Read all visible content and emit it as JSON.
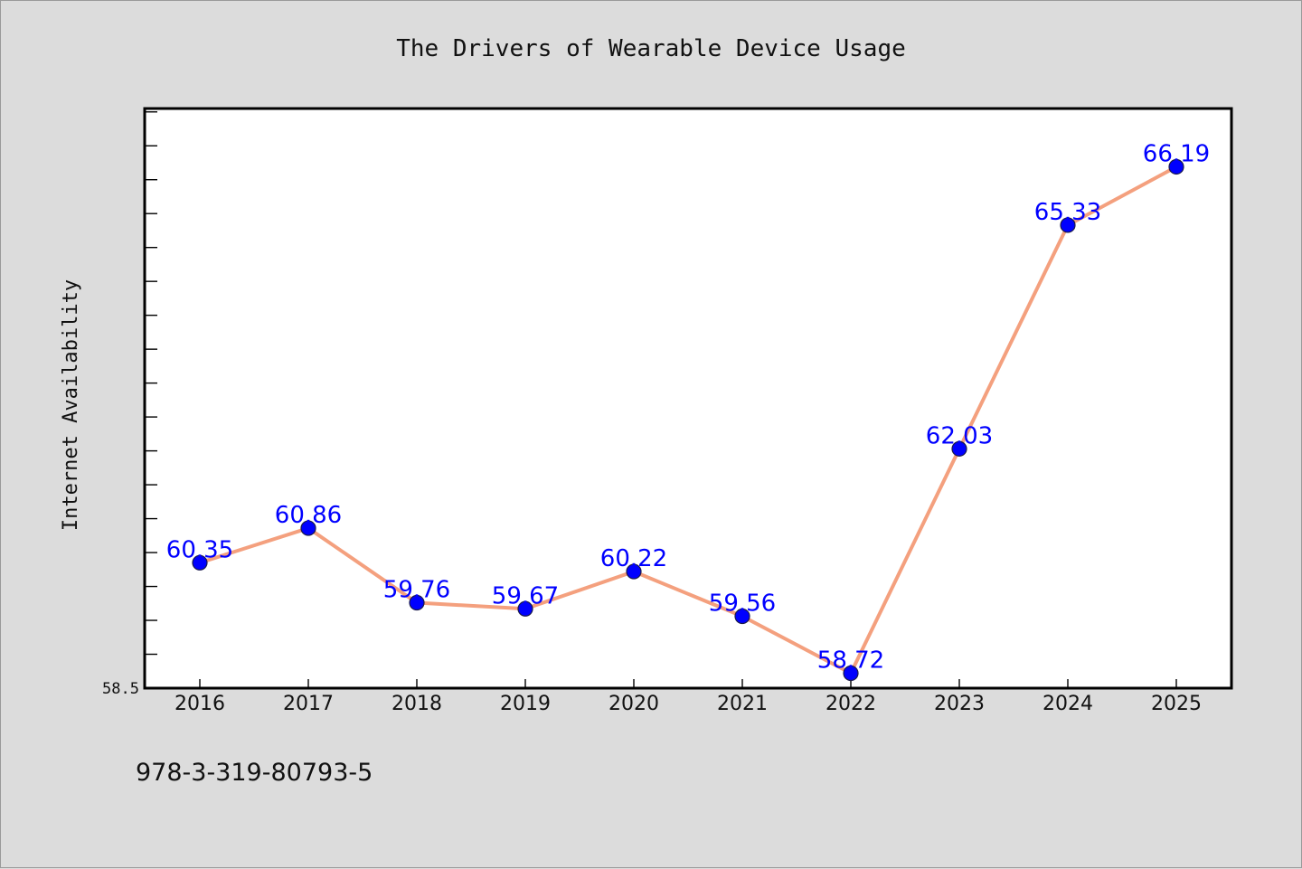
{
  "chart_data": {
    "type": "line",
    "title": "The Drivers of Wearable Device Usage",
    "xlabel": "",
    "ylabel": "Internet Availability",
    "categories": [
      "2016",
      "2017",
      "2018",
      "2019",
      "2020",
      "2021",
      "2022",
      "2023",
      "2024",
      "2025"
    ],
    "series": [
      {
        "values": [
          60.35,
          60.86,
          59.76,
          59.67,
          60.22,
          59.56,
          58.72,
          62.03,
          65.33,
          66.19
        ]
      }
    ],
    "data_labels": [
      "60.35",
      "60.86",
      "59.76",
      "59.67",
      "60.22",
      "59.56",
      "58.72",
      "62.03",
      "65.33",
      "66.19"
    ],
    "y_tick_labels": [
      "58.5"
    ],
    "ylim": [
      58.5,
      67.05
    ],
    "y_minor_step": 0.5,
    "grid": false,
    "legend": "none"
  },
  "footer": {
    "code": "978-3-319-80793-5"
  },
  "colors": {
    "background": "#dcdcdc",
    "plot_background": "#ffffff",
    "axes": "#000000",
    "line": "#f4a07e",
    "marker_fill": "#0000ff",
    "marker_stroke": "#1a1a4a",
    "data_label": "#0000ff"
  }
}
